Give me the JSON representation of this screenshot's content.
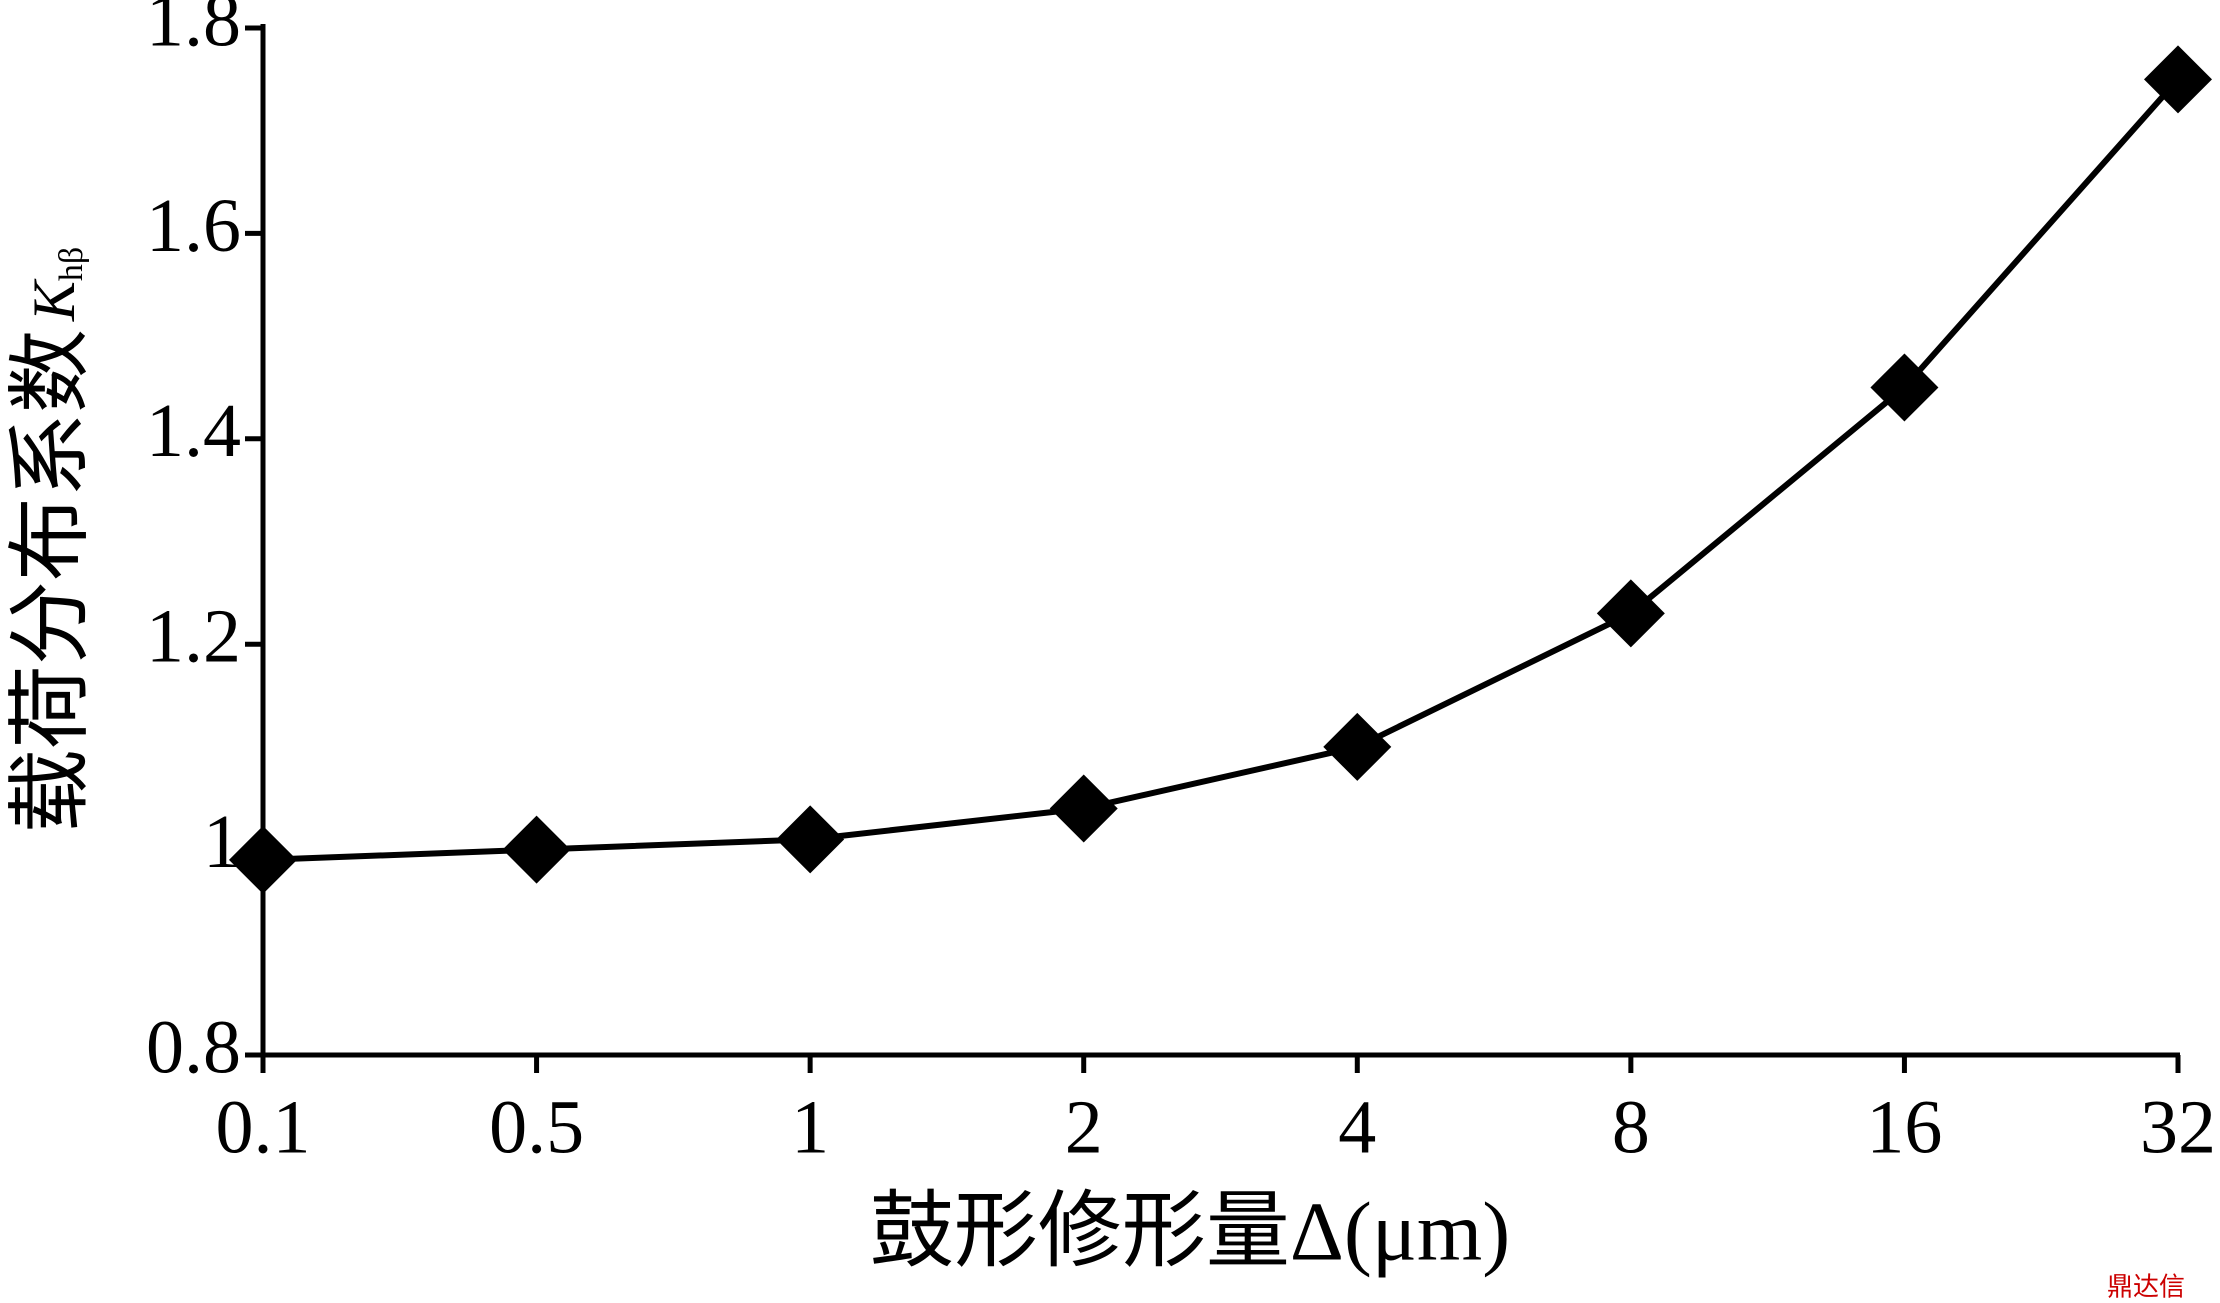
{
  "chart_data": {
    "type": "line",
    "xlabel": "鼓形修形量Δ(μm)",
    "ylabel": "载荷分布系数",
    "ylabel_symbol": "K",
    "ylabel_subscript": "hβ",
    "categories": [
      "0.1",
      "0.5",
      "1",
      "2",
      "4",
      "8",
      "16",
      "32"
    ],
    "values": [
      0.99,
      1.0,
      1.01,
      1.04,
      1.1,
      1.23,
      1.45,
      1.75
    ],
    "color": "#000000",
    "marker": "diamond",
    "ylim": [
      0.8,
      1.8
    ],
    "yticks": [
      0.8,
      1,
      1.2,
      1.4,
      1.6,
      1.8
    ],
    "grid": false,
    "watermark": "鼎达信"
  }
}
